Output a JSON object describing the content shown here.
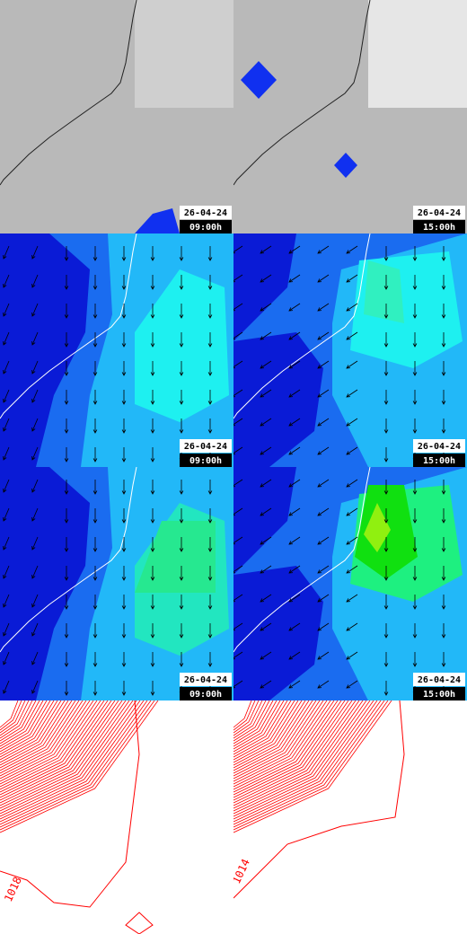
{
  "panels": [
    {
      "date": "26-04-24",
      "time": "09:00h"
    },
    {
      "date": "26-04-24",
      "time": "15:00h"
    },
    {
      "date": "26-04-24",
      "time": "09:00h"
    },
    {
      "date": "26-04-24",
      "time": "15:00h"
    },
    {
      "date": "26-04-24",
      "time": "09:00h"
    },
    {
      "date": "26-04-24",
      "time": "15:00h"
    }
  ],
  "contours": [
    {
      "label": "1018"
    },
    {
      "label": "1014"
    }
  ]
}
